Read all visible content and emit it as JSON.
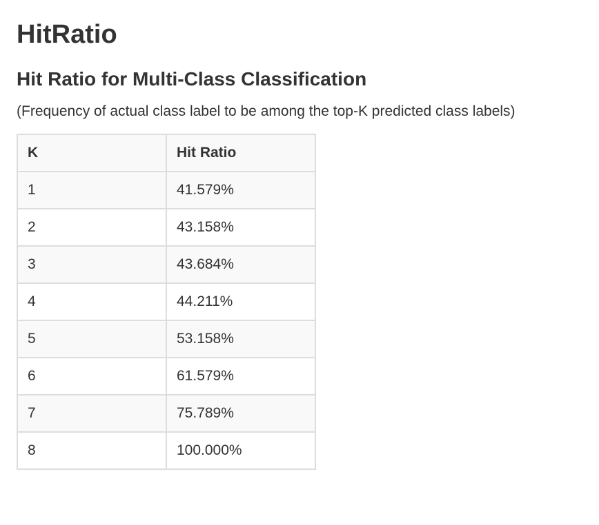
{
  "page": {
    "title": "HitRatio",
    "subtitle": "Hit Ratio for Multi-Class Classification",
    "description": "(Frequency of actual class label to be among the top-K predicted class labels)"
  },
  "table": {
    "headers": [
      "K",
      "Hit Ratio"
    ],
    "rows": [
      [
        "1",
        "41.579%"
      ],
      [
        "2",
        "43.158%"
      ],
      [
        "3",
        "43.684%"
      ],
      [
        "4",
        "44.211%"
      ],
      [
        "5",
        "53.158%"
      ],
      [
        "6",
        "61.579%"
      ],
      [
        "7",
        "75.789%"
      ],
      [
        "8",
        "100.000%"
      ]
    ]
  },
  "colors": {
    "text": "#333333",
    "border": "#dddddd",
    "stripe": "#f9f9f9",
    "background": "#ffffff"
  }
}
